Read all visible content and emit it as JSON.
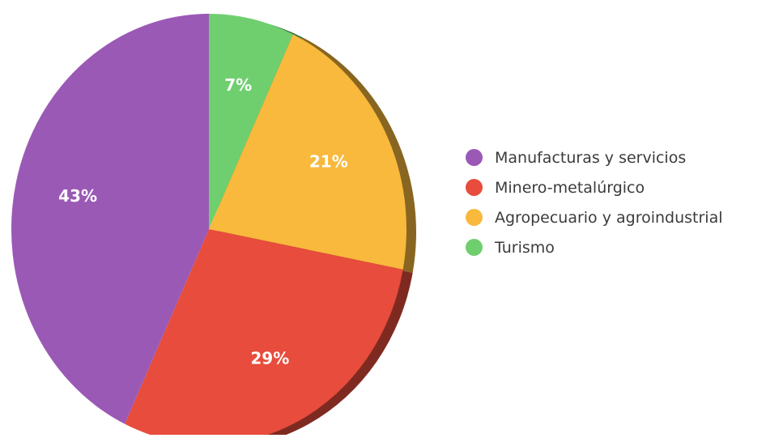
{
  "chart_data": {
    "type": "pie",
    "title": "",
    "slices": [
      {
        "label": "Manufacturas y servicios",
        "value": 43,
        "display": "43%",
        "color": "#9b59b6"
      },
      {
        "label": "Minero-metalúrgico",
        "value": 29,
        "display": "29%",
        "color": "#e74c3c"
      },
      {
        "label": "Agropecuario y agroindustrial",
        "value": 21,
        "display": "21%",
        "color": "#f8b93c"
      },
      {
        "label": "Turismo",
        "value": 7,
        "display": "7%",
        "color": "#6fcf6f"
      }
    ],
    "legend_position": "right",
    "start_angle": "top",
    "direction": "clockwise",
    "slice_order_from_top": [
      "Turismo",
      "Agropecuario y agroindustrial",
      "Minero-metalúrgico",
      "Manufacturas y servicios"
    ]
  }
}
